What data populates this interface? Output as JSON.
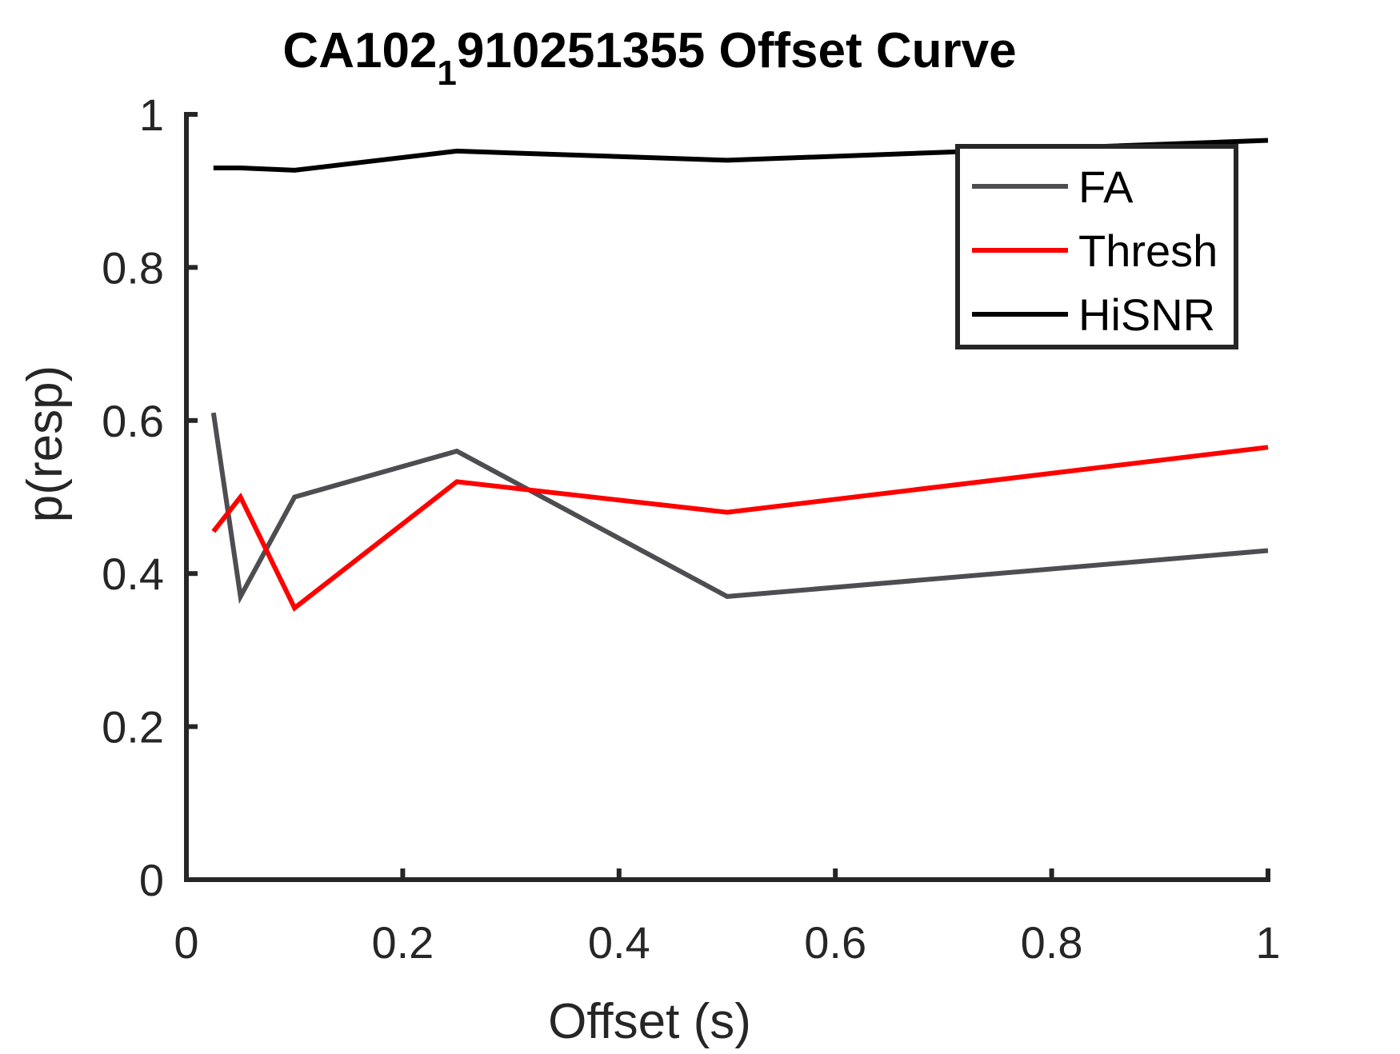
{
  "chart_data": {
    "type": "line",
    "title": {
      "main": "CA102",
      "subscript": "1",
      "rest": "910251355 Offset Curve"
    },
    "xlabel": "Offset (s)",
    "ylabel": "p(resp)",
    "xlim": [
      0,
      1
    ],
    "ylim": [
      0,
      1
    ],
    "xticks": [
      0,
      0.2,
      0.4,
      0.6,
      0.8,
      1
    ],
    "xtick_labels": [
      "0",
      "0.2",
      "0.4",
      "0.6",
      "0.8",
      "1"
    ],
    "yticks": [
      0,
      0.2,
      0.4,
      0.6,
      0.8,
      1
    ],
    "ytick_labels": [
      "0",
      "0.2",
      "0.4",
      "0.6",
      "0.8",
      "1"
    ],
    "grid": false,
    "legend_position": "top-right",
    "series": [
      {
        "name": "FA",
        "color": "#4d4d52",
        "x": [
          0.025,
          0.05,
          0.1,
          0.25,
          0.5,
          1
        ],
        "y": [
          0.61,
          0.37,
          0.5,
          0.56,
          0.37,
          0.43
        ]
      },
      {
        "name": "Thresh",
        "color": "#ff0000",
        "x": [
          0.025,
          0.05,
          0.1,
          0.25,
          0.5,
          1
        ],
        "y": [
          0.455,
          0.5,
          0.355,
          0.52,
          0.48,
          0.565
        ]
      },
      {
        "name": "HiSNR",
        "color": "#000000",
        "x": [
          0.025,
          0.05,
          0.1,
          0.25,
          0.5,
          1
        ],
        "y": [
          0.93,
          0.93,
          0.927,
          0.952,
          0.94,
          0.966
        ]
      }
    ]
  }
}
